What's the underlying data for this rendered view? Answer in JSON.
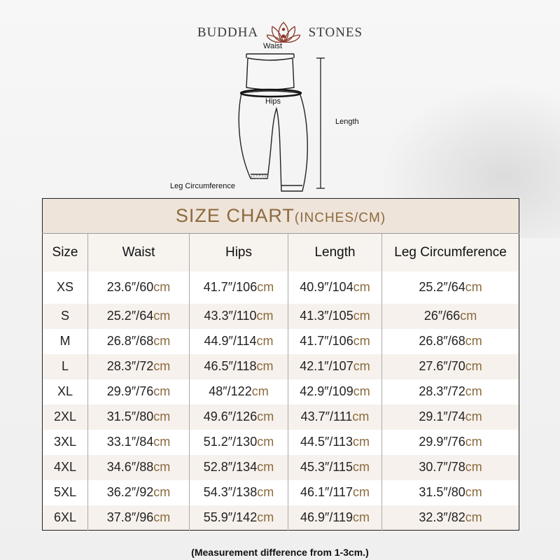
{
  "brand": {
    "left": "BUDDHA",
    "right": "STONES",
    "accent": "#8b3a2a"
  },
  "diagram": {
    "waist": "Waist",
    "hips": "Hips",
    "length": "Length",
    "leg": "Leg Circumference"
  },
  "table": {
    "title": "SIZE CHART",
    "title_units": "(INCHES/CM)",
    "unit": "cm",
    "headers": [
      "Size",
      "Waist",
      "Hips",
      "Length",
      "Leg Circumference"
    ],
    "rows": [
      {
        "size": "XS",
        "waist": "23.6″/60",
        "hips": "41.7″/106",
        "length": "40.9″/104",
        "leg": "25.2″/64"
      },
      {
        "size": "S",
        "waist": "25.2″/64",
        "hips": "43.3″/110",
        "length": "41.3″/105",
        "leg": "26″/66"
      },
      {
        "size": "M",
        "waist": "26.8″/68",
        "hips": "44.9″/114",
        "length": "41.7″/106",
        "leg": "26.8″/68"
      },
      {
        "size": "L",
        "waist": "28.3″/72",
        "hips": "46.5″/118",
        "length": "42.1″/107",
        "leg": "27.6″/70"
      },
      {
        "size": "XL",
        "waist": "29.9″/76",
        "hips": "48″/122",
        "length": "42.9″/109",
        "leg": "28.3″/72"
      },
      {
        "size": "2XL",
        "waist": "31.5″/80",
        "hips": "49.6″/126",
        "length": "43.7″/111",
        "leg": "29.1″/74"
      },
      {
        "size": "3XL",
        "waist": "33.1″/84",
        "hips": "51.2″/130",
        "length": "44.5″/113",
        "leg": "29.9″/76"
      },
      {
        "size": "4XL",
        "waist": "34.6″/88",
        "hips": "52.8″/134",
        "length": "45.3″/115",
        "leg": "30.7″/78"
      },
      {
        "size": "5XL",
        "waist": "36.2″/92",
        "hips": "54.3″/138",
        "length": "46.1″/117",
        "leg": "31.5″/80"
      },
      {
        "size": "6XL",
        "waist": "37.8″/96",
        "hips": "55.9″/142",
        "length": "46.9″/119",
        "leg": "32.3″/82"
      }
    ]
  },
  "note": "(Measurement difference from 1-3cm.)"
}
